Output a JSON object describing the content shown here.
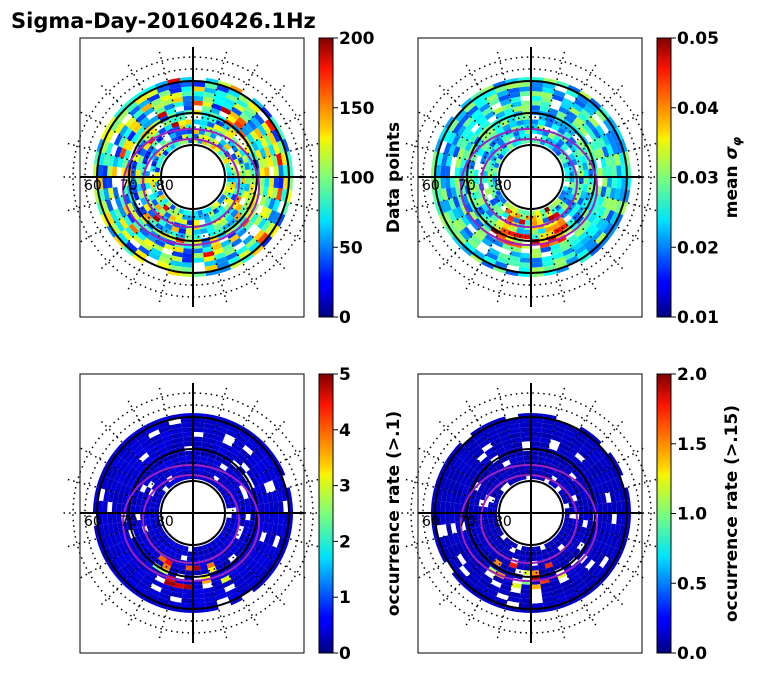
{
  "figure": {
    "title": "Sigma-Day-20160426.1Hz"
  },
  "chart_data": [
    {
      "type": "heatmap",
      "projection": "polar",
      "ring_labels": [
        "60",
        "70",
        "80"
      ],
      "colorbar": {
        "label": "Data points",
        "colormap": "jet",
        "range": [
          0,
          200
        ],
        "ticks": [
          {
            "value": 0,
            "label": "0"
          },
          {
            "value": 50,
            "label": "50"
          },
          {
            "value": 100,
            "label": "100"
          },
          {
            "value": 150,
            "label": "150"
          },
          {
            "value": 200,
            "label": "200"
          }
        ]
      },
      "grid": true
    },
    {
      "type": "heatmap",
      "projection": "polar",
      "ring_labels": [
        "60",
        "70",
        "80"
      ],
      "colorbar": {
        "label_prefix": "mean ",
        "label_symbol": "σ",
        "label_subscript": "φ",
        "colormap": "jet",
        "range": [
          0.01,
          0.05
        ],
        "ticks": [
          {
            "value": 0.01,
            "label": "0.01"
          },
          {
            "value": 0.02,
            "label": "0.02"
          },
          {
            "value": 0.03,
            "label": "0.03"
          },
          {
            "value": 0.04,
            "label": "0.04"
          },
          {
            "value": 0.05,
            "label": "0.05"
          }
        ]
      },
      "grid": true
    },
    {
      "type": "heatmap",
      "projection": "polar",
      "ring_labels": [
        "60",
        "70",
        "80"
      ],
      "colorbar": {
        "label": "occurrence rate (>.1)",
        "colormap": "jet",
        "range": [
          0,
          5
        ],
        "ticks": [
          {
            "value": 0,
            "label": "0"
          },
          {
            "value": 1,
            "label": "1"
          },
          {
            "value": 2,
            "label": "2"
          },
          {
            "value": 3,
            "label": "3"
          },
          {
            "value": 4,
            "label": "4"
          },
          {
            "value": 5,
            "label": "5"
          }
        ]
      },
      "grid": true
    },
    {
      "type": "heatmap",
      "projection": "polar",
      "ring_labels": [
        "60",
        "70",
        "80"
      ],
      "colorbar": {
        "label": "occurrence rate (>.15)",
        "colormap": "jet",
        "range": [
          0,
          2
        ],
        "ticks": [
          {
            "value": 0,
            "label": "0.0"
          },
          {
            "value": 0.5,
            "label": "0.5"
          },
          {
            "value": 1.0,
            "label": "1.0"
          },
          {
            "value": 1.5,
            "label": "1.5"
          },
          {
            "value": 2.0,
            "label": "2.0"
          }
        ]
      },
      "grid": true
    }
  ]
}
